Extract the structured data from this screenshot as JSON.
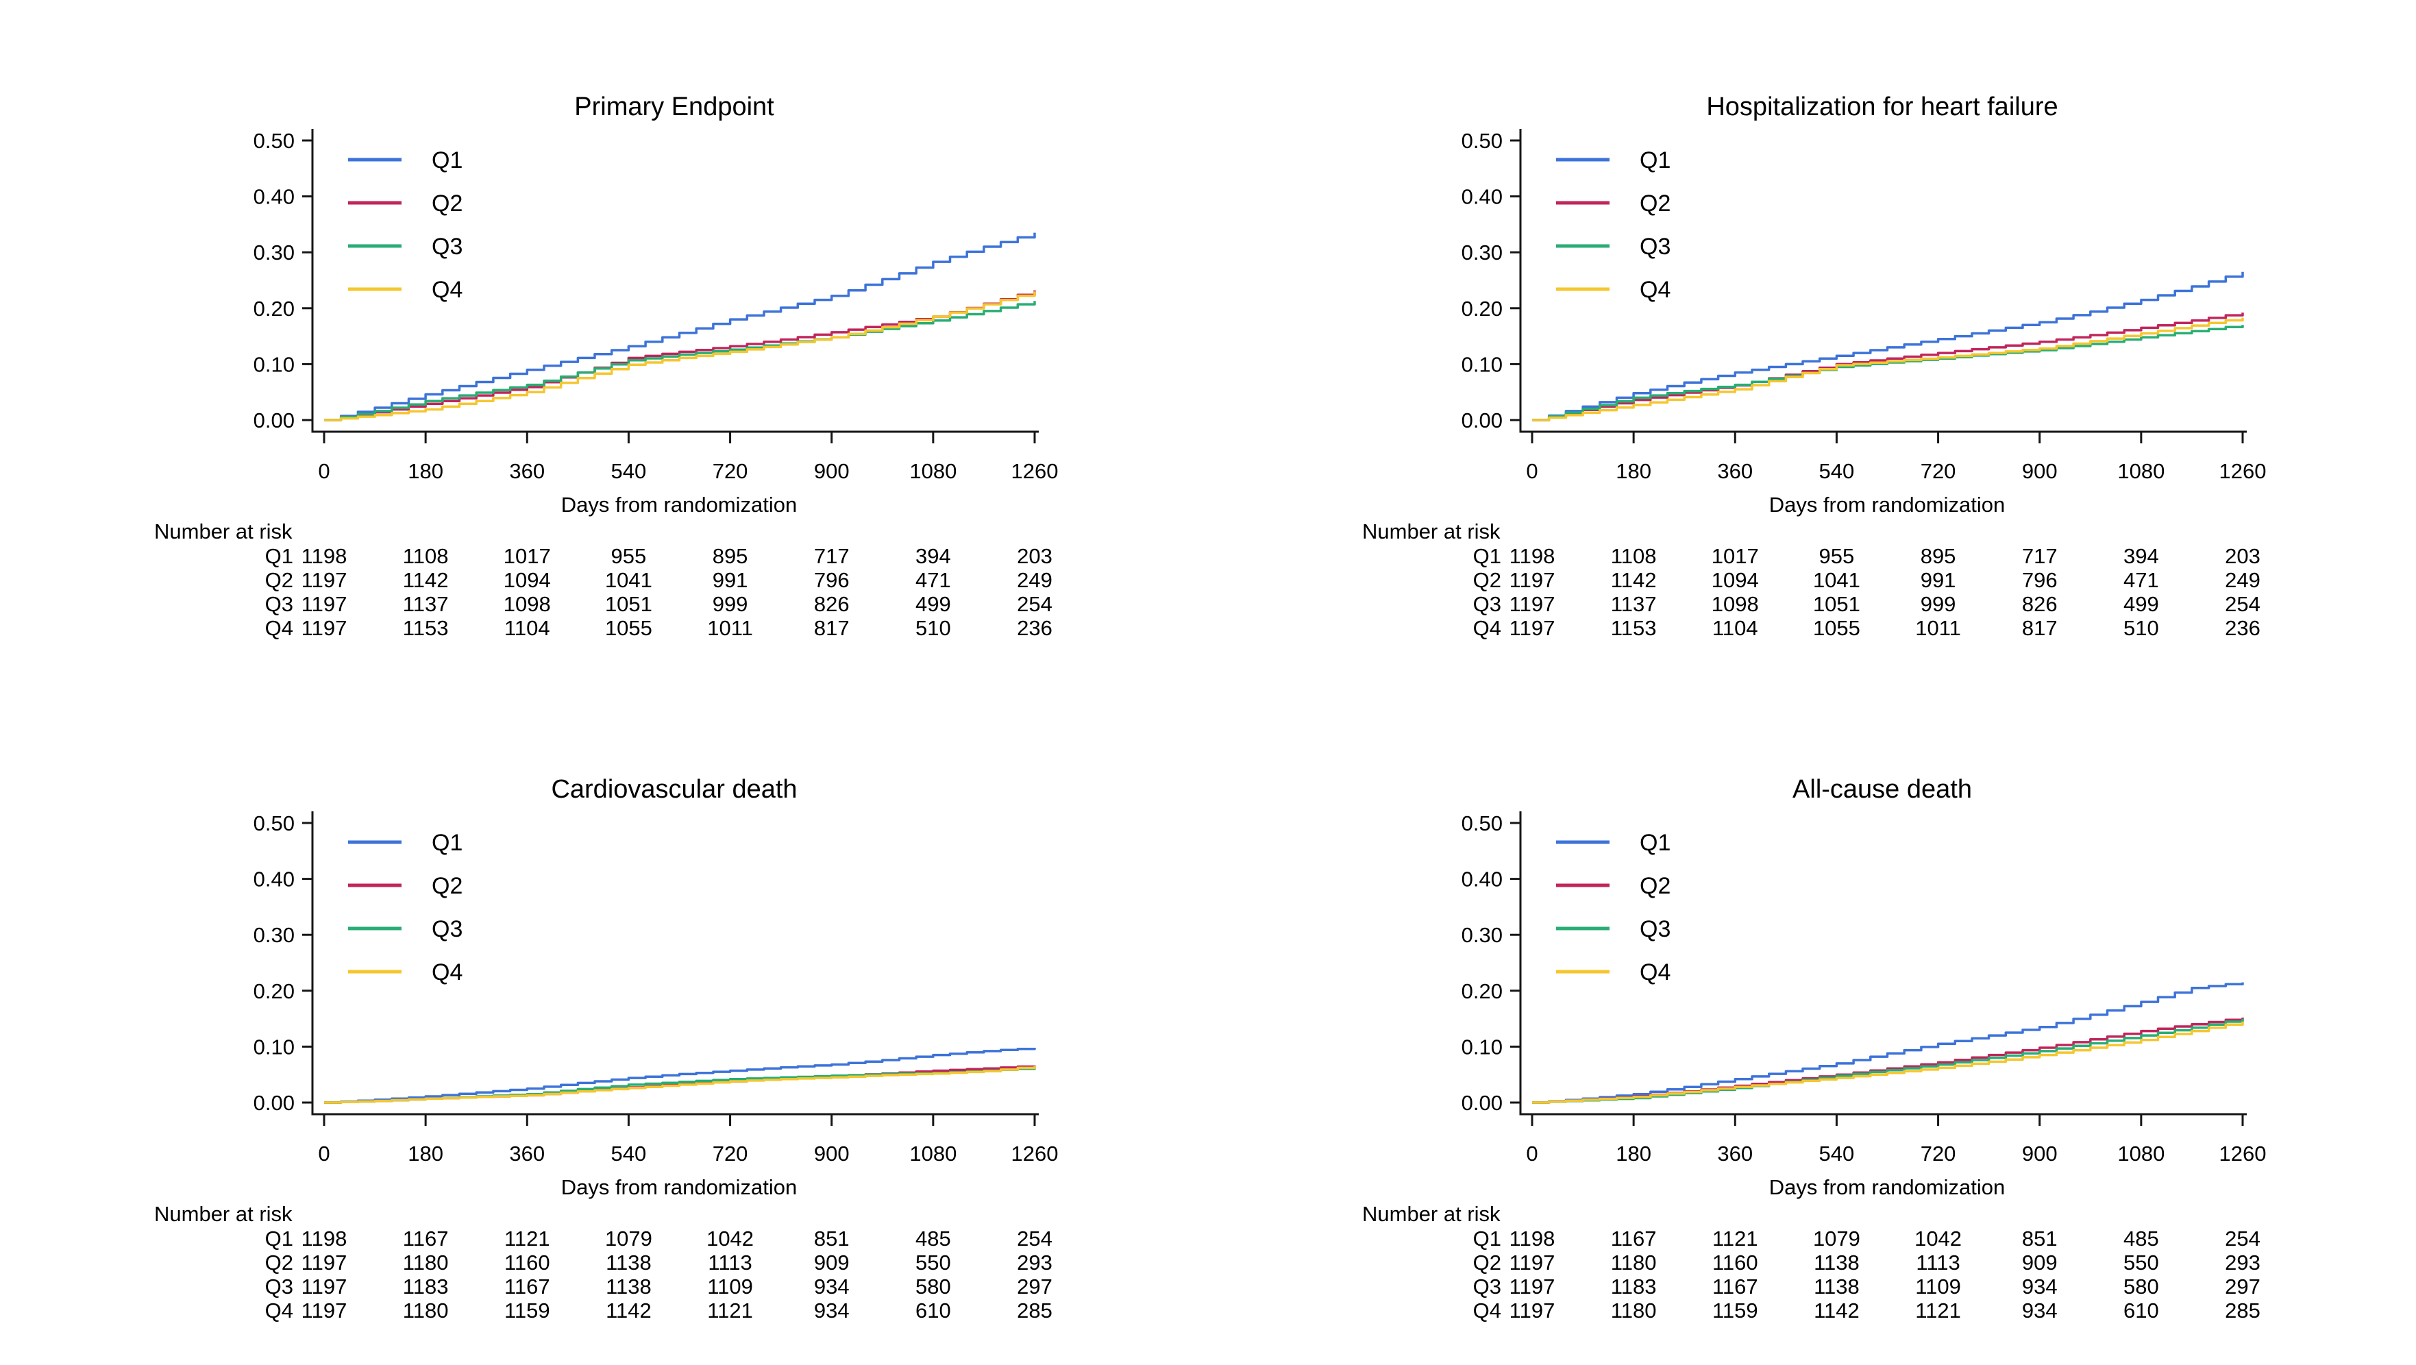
{
  "figure": {
    "background": "#ffffff",
    "layout": "2x2-grid",
    "axis_color": "#161616"
  },
  "chart_data": [
    {
      "type": "line",
      "title": "Primary Endpoint",
      "xlabel": "Days from randomization",
      "x": [
        0,
        180,
        360,
        540,
        720,
        900,
        1080,
        1260
      ],
      "xlim": [
        0,
        1260
      ],
      "ylim": [
        0,
        0.5
      ],
      "grid": false,
      "legend_position": "top-left-inside",
      "yticks": [
        {
          "value": 0.0,
          "label": "0.00"
        },
        {
          "value": 0.1,
          "label": "0.10"
        },
        {
          "value": 0.2,
          "label": "0.20"
        },
        {
          "value": 0.3,
          "label": "0.30"
        },
        {
          "value": 0.4,
          "label": "0.40"
        },
        {
          "value": 0.5,
          "label": "0.50"
        }
      ],
      "days_grid": [
        0,
        90,
        180,
        270,
        360,
        450,
        540,
        630,
        720,
        810,
        900,
        990,
        1080,
        1170,
        1260
      ],
      "series": [
        {
          "name": "Q1",
          "color": "#3D73D9",
          "values": [
            0,
            0.022,
            0.046,
            0.068,
            0.09,
            0.111,
            0.132,
            0.156,
            0.18,
            0.201,
            0.222,
            0.252,
            0.283,
            0.31,
            0.335
          ]
        },
        {
          "name": "Q2",
          "color": "#C0255C",
          "values": [
            0,
            0.014,
            0.029,
            0.044,
            0.059,
            0.085,
            0.111,
            0.122,
            0.132,
            0.144,
            0.157,
            0.171,
            0.185,
            0.208,
            0.232
          ]
        },
        {
          "name": "Q3",
          "color": "#28AD74",
          "values": [
            0,
            0.016,
            0.034,
            0.049,
            0.063,
            0.085,
            0.107,
            0.117,
            0.126,
            0.137,
            0.148,
            0.163,
            0.178,
            0.195,
            0.213
          ]
        },
        {
          "name": "Q4",
          "color": "#F5C62F",
          "values": [
            0,
            0.009,
            0.019,
            0.034,
            0.05,
            0.075,
            0.099,
            0.111,
            0.122,
            0.135,
            0.148,
            0.166,
            0.185,
            0.207,
            0.23
          ]
        }
      ],
      "risk_table": {
        "label": "Number at risk",
        "rows": [
          {
            "name": "Q1",
            "counts": [
              1198,
              1108,
              1017,
              955,
              895,
              717,
              394,
              203
            ]
          },
          {
            "name": "Q2",
            "counts": [
              1197,
              1142,
              1094,
              1041,
              991,
              796,
              471,
              249
            ]
          },
          {
            "name": "Q3",
            "counts": [
              1197,
              1137,
              1098,
              1051,
              999,
              826,
              499,
              254
            ]
          },
          {
            "name": "Q4",
            "counts": [
              1197,
              1153,
              1104,
              1055,
              1011,
              817,
              510,
              236
            ]
          }
        ]
      }
    },
    {
      "type": "line",
      "title": "Hospitalization for heart failure",
      "xlabel": "Days from randomization",
      "x": [
        0,
        180,
        360,
        540,
        720,
        900,
        1080,
        1260
      ],
      "xlim": [
        0,
        1260
      ],
      "ylim": [
        0,
        0.5
      ],
      "grid": false,
      "legend_position": "top-left-inside",
      "yticks": [
        {
          "value": 0.0,
          "label": "0.00"
        },
        {
          "value": 0.1,
          "label": "0.10"
        },
        {
          "value": 0.2,
          "label": "0.20"
        },
        {
          "value": 0.3,
          "label": "0.30"
        },
        {
          "value": 0.4,
          "label": "0.40"
        },
        {
          "value": 0.5,
          "label": "0.50"
        }
      ],
      "days_grid": [
        0,
        90,
        180,
        270,
        360,
        450,
        540,
        630,
        720,
        810,
        900,
        990,
        1080,
        1170,
        1260
      ],
      "series": [
        {
          "name": "Q1",
          "color": "#3D73D9",
          "values": [
            0,
            0.024,
            0.048,
            0.067,
            0.085,
            0.1,
            0.115,
            0.13,
            0.145,
            0.16,
            0.175,
            0.194,
            0.215,
            0.239,
            0.265
          ]
        },
        {
          "name": "Q2",
          "color": "#C0255C",
          "values": [
            0,
            0.018,
            0.036,
            0.049,
            0.062,
            0.081,
            0.1,
            0.11,
            0.12,
            0.13,
            0.14,
            0.152,
            0.165,
            0.178,
            0.192
          ]
        },
        {
          "name": "Q3",
          "color": "#28AD74",
          "values": [
            0,
            0.02,
            0.04,
            0.052,
            0.063,
            0.079,
            0.095,
            0.103,
            0.11,
            0.118,
            0.125,
            0.136,
            0.148,
            0.159,
            0.17
          ]
        },
        {
          "name": "Q4",
          "color": "#F5C62F",
          "values": [
            0,
            0.013,
            0.027,
            0.041,
            0.055,
            0.077,
            0.098,
            0.105,
            0.112,
            0.12,
            0.128,
            0.141,
            0.155,
            0.169,
            0.183
          ]
        }
      ],
      "risk_table": {
        "label": "Number at risk",
        "rows": [
          {
            "name": "Q1",
            "counts": [
              1198,
              1108,
              1017,
              955,
              895,
              717,
              394,
              203
            ]
          },
          {
            "name": "Q2",
            "counts": [
              1197,
              1142,
              1094,
              1041,
              991,
              796,
              471,
              249
            ]
          },
          {
            "name": "Q3",
            "counts": [
              1197,
              1137,
              1098,
              1051,
              999,
              826,
              499,
              254
            ]
          },
          {
            "name": "Q4",
            "counts": [
              1197,
              1153,
              1104,
              1055,
              1011,
              817,
              510,
              236
            ]
          }
        ]
      }
    },
    {
      "type": "line",
      "title": "Cardiovascular death",
      "xlabel": "Days from randomization",
      "x": [
        0,
        180,
        360,
        540,
        720,
        900,
        1080,
        1260
      ],
      "xlim": [
        0,
        1260
      ],
      "ylim": [
        0,
        0.5
      ],
      "grid": false,
      "legend_position": "top-left-inside",
      "yticks": [
        {
          "value": 0.0,
          "label": "0.00"
        },
        {
          "value": 0.1,
          "label": "0.10"
        },
        {
          "value": 0.2,
          "label": "0.20"
        },
        {
          "value": 0.3,
          "label": "0.30"
        },
        {
          "value": 0.4,
          "label": "0.40"
        },
        {
          "value": 0.5,
          "label": "0.50"
        }
      ],
      "days_grid": [
        0,
        90,
        180,
        270,
        360,
        450,
        540,
        630,
        720,
        810,
        900,
        990,
        1080,
        1170,
        1260
      ],
      "series": [
        {
          "name": "Q1",
          "color": "#3D73D9",
          "values": [
            0,
            0.005,
            0.011,
            0.018,
            0.025,
            0.035,
            0.044,
            0.051,
            0.057,
            0.063,
            0.068,
            0.076,
            0.085,
            0.092,
            0.098
          ]
        },
        {
          "name": "Q2",
          "color": "#C0255C",
          "values": [
            0,
            0.003,
            0.007,
            0.01,
            0.013,
            0.02,
            0.027,
            0.033,
            0.038,
            0.043,
            0.047,
            0.052,
            0.057,
            0.061,
            0.066
          ]
        },
        {
          "name": "Q3",
          "color": "#28AD74",
          "values": [
            0,
            0.003,
            0.007,
            0.011,
            0.015,
            0.024,
            0.032,
            0.037,
            0.042,
            0.045,
            0.048,
            0.051,
            0.053,
            0.057,
            0.062
          ]
        },
        {
          "name": "Q4",
          "color": "#F5C62F",
          "values": [
            0,
            0.003,
            0.007,
            0.01,
            0.013,
            0.02,
            0.026,
            0.032,
            0.038,
            0.042,
            0.045,
            0.049,
            0.052,
            0.056,
            0.065
          ]
        }
      ],
      "risk_table": {
        "label": "Number at risk",
        "rows": [
          {
            "name": "Q1",
            "counts": [
              1198,
              1167,
              1121,
              1079,
              1042,
              851,
              485,
              254
            ]
          },
          {
            "name": "Q2",
            "counts": [
              1197,
              1180,
              1160,
              1138,
              1113,
              909,
              550,
              293
            ]
          },
          {
            "name": "Q3",
            "counts": [
              1197,
              1183,
              1167,
              1138,
              1109,
              934,
              580,
              297
            ]
          },
          {
            "name": "Q4",
            "counts": [
              1197,
              1180,
              1159,
              1142,
              1121,
              934,
              610,
              285
            ]
          }
        ]
      }
    },
    {
      "type": "line",
      "title": "All-cause death",
      "xlabel": "Days from randomization",
      "x": [
        0,
        180,
        360,
        540,
        720,
        900,
        1080,
        1260
      ],
      "xlim": [
        0,
        1260
      ],
      "ylim": [
        0,
        0.5
      ],
      "grid": false,
      "legend_position": "top-left-inside",
      "yticks": [
        {
          "value": 0.0,
          "label": "0.00"
        },
        {
          "value": 0.1,
          "label": "0.10"
        },
        {
          "value": 0.2,
          "label": "0.20"
        },
        {
          "value": 0.3,
          "label": "0.30"
        },
        {
          "value": 0.4,
          "label": "0.40"
        },
        {
          "value": 0.5,
          "label": "0.50"
        }
      ],
      "days_grid": [
        0,
        90,
        180,
        270,
        360,
        450,
        540,
        630,
        720,
        810,
        900,
        990,
        1080,
        1170,
        1260
      ],
      "series": [
        {
          "name": "Q1",
          "color": "#3D73D9",
          "values": [
            0,
            0.007,
            0.015,
            0.028,
            0.042,
            0.056,
            0.07,
            0.088,
            0.105,
            0.12,
            0.135,
            0.157,
            0.18,
            0.205,
            0.215
          ]
        },
        {
          "name": "Q2",
          "color": "#C0255C",
          "values": [
            0,
            0.005,
            0.011,
            0.02,
            0.03,
            0.04,
            0.05,
            0.061,
            0.072,
            0.085,
            0.098,
            0.113,
            0.128,
            0.14,
            0.152
          ]
        },
        {
          "name": "Q3",
          "color": "#28AD74",
          "values": [
            0,
            0.004,
            0.008,
            0.017,
            0.026,
            0.037,
            0.048,
            0.058,
            0.068,
            0.08,
            0.092,
            0.106,
            0.12,
            0.134,
            0.15
          ]
        },
        {
          "name": "Q4",
          "color": "#F5C62F",
          "values": [
            0,
            0.005,
            0.01,
            0.019,
            0.028,
            0.036,
            0.044,
            0.053,
            0.062,
            0.073,
            0.085,
            0.098,
            0.112,
            0.128,
            0.145
          ]
        }
      ],
      "risk_table": {
        "label": "Number at risk",
        "rows": [
          {
            "name": "Q1",
            "counts": [
              1198,
              1167,
              1121,
              1079,
              1042,
              851,
              485,
              254
            ]
          },
          {
            "name": "Q2",
            "counts": [
              1197,
              1180,
              1160,
              1138,
              1113,
              909,
              550,
              293
            ]
          },
          {
            "name": "Q3",
            "counts": [
              1197,
              1183,
              1167,
              1138,
              1109,
              934,
              580,
              297
            ]
          },
          {
            "name": "Q4",
            "counts": [
              1197,
              1180,
              1159,
              1142,
              1121,
              934,
              610,
              285
            ]
          }
        ]
      }
    }
  ]
}
